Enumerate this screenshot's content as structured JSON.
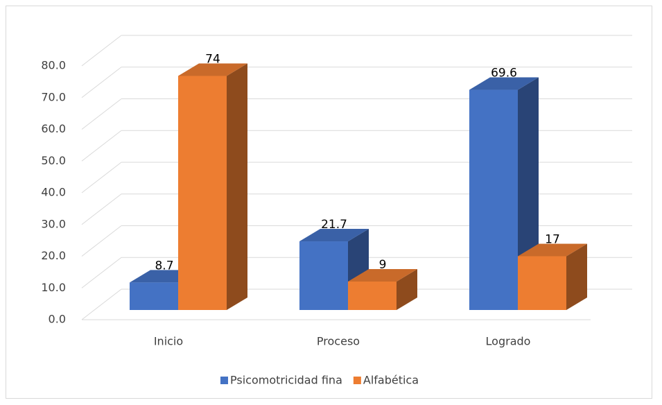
{
  "chart_data": {
    "type": "bar3d",
    "categories": [
      "Inicio",
      "Proceso",
      "Logrado"
    ],
    "series": [
      {
        "name": "Psicomotricidad fina",
        "color": "#4472c4",
        "values": [
          8.7,
          21.7,
          69.6
        ]
      },
      {
        "name": "Alfabética",
        "color": "#ed7d31",
        "values": [
          74,
          9,
          17
        ]
      }
    ],
    "ylim": [
      0,
      80
    ],
    "yticks": [
      {
        "value": 0,
        "label": "0.0"
      },
      {
        "value": 10,
        "label": "10.0"
      },
      {
        "value": 20,
        "label": "20.0"
      },
      {
        "value": 30,
        "label": "30.0"
      },
      {
        "value": 40,
        "label": "40.0"
      },
      {
        "value": 50,
        "label": "50.0"
      },
      {
        "value": 60,
        "label": "60.0"
      },
      {
        "value": 70,
        "label": "70.0"
      },
      {
        "value": 80,
        "label": "80.0"
      }
    ],
    "grid": true,
    "legend": "bottom"
  }
}
